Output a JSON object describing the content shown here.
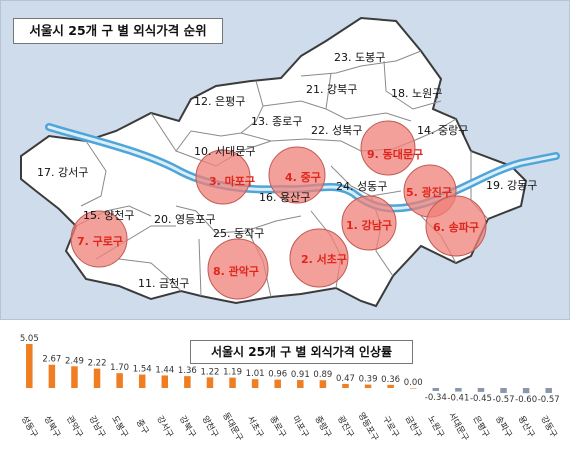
{
  "map": {
    "title": "서울시 25개 구 별 외식가격 순위",
    "colors": {
      "background": "#cfdcec",
      "district_fill": "#ffffff",
      "river": "#4fa5d8",
      "highlight": "#ef8078"
    },
    "districts": [
      {
        "id": "dobong",
        "label": "23. 도봉구",
        "highlight": false
      },
      {
        "id": "gangbuk",
        "label": "21. 강북구",
        "highlight": false
      },
      {
        "id": "nowon",
        "label": "18. 노원구",
        "highlight": false
      },
      {
        "id": "eunpyeong",
        "label": "12. 은평구",
        "highlight": false
      },
      {
        "id": "jongno",
        "label": "13. 종로구",
        "highlight": false
      },
      {
        "id": "seongbuk",
        "label": "22. 성북구",
        "highlight": false
      },
      {
        "id": "jungnang",
        "label": "14. 중랑구",
        "highlight": false
      },
      {
        "id": "dongdaemun",
        "label": "9. 동대문구",
        "highlight": true
      },
      {
        "id": "seodaemun",
        "label": "10. 서대문구",
        "highlight": false
      },
      {
        "id": "gangseo",
        "label": "17. 강서구",
        "highlight": false
      },
      {
        "id": "mapo",
        "label": "3. 마포구",
        "highlight": true
      },
      {
        "id": "jung",
        "label": "4. 중구",
        "highlight": true
      },
      {
        "id": "seongdong",
        "label": "24. 성동구",
        "highlight": false
      },
      {
        "id": "gwangjin",
        "label": "5. 광진구",
        "highlight": true
      },
      {
        "id": "gangdong",
        "label": "19. 강동구",
        "highlight": false
      },
      {
        "id": "yongsan",
        "label": "16. 용산구",
        "highlight": false
      },
      {
        "id": "yangcheon",
        "label": "15. 양천구",
        "highlight": false
      },
      {
        "id": "yeongdeungpo",
        "label": "20. 영등포구",
        "highlight": false
      },
      {
        "id": "gangnam",
        "label": "1. 강남구",
        "highlight": true
      },
      {
        "id": "songpa",
        "label": "6. 송파구",
        "highlight": true
      },
      {
        "id": "guro",
        "label": "7. 구로구",
        "highlight": true
      },
      {
        "id": "dongjak",
        "label": "25. 동작구",
        "highlight": false
      },
      {
        "id": "gwanak",
        "label": "8. 관악구",
        "highlight": true
      },
      {
        "id": "seocho",
        "label": "2. 서초구",
        "highlight": true
      },
      {
        "id": "geumcheon",
        "label": "11. 금천구",
        "highlight": false
      }
    ]
  },
  "chart_data": {
    "type": "bar",
    "title": "서울시 25개 구 별 외식가격 인상률",
    "categories": [
      "성동구",
      "성북구",
      "관악구",
      "강남구",
      "도봉구",
      "중구",
      "강서구",
      "강북구",
      "양천구",
      "동대문구",
      "서초구",
      "종로구",
      "마포구",
      "중랑구",
      "광진구",
      "영등포구",
      "구로구",
      "금천구",
      "노원구",
      "서대문구",
      "은평구",
      "송파구",
      "용산구",
      "강동구"
    ],
    "values": [
      5.05,
      2.67,
      2.49,
      2.22,
      1.7,
      1.54,
      1.44,
      1.36,
      1.22,
      1.19,
      1.01,
      0.96,
      0.91,
      0.89,
      0.47,
      0.39,
      0.36,
      0.0,
      -0.34,
      -0.41,
      -0.45,
      -0.57,
      -0.6,
      -0.57
    ],
    "value_labels": [
      "5.05",
      "2.67",
      "2.49",
      "2.22",
      "1.70",
      "1.54",
      "1.44",
      "1.36",
      "1.22",
      "1.19",
      "1.01",
      "0.96",
      "0.91",
      "0.89",
      "0.47",
      "0.39",
      "0.36",
      "0.00",
      "-0.34",
      "-0.41",
      "-0.45",
      "-0.57",
      "-0.60",
      "-0.57"
    ],
    "colors": {
      "positive": "#ef7d22",
      "negative": "#8899ad"
    },
    "ylim": [
      -0.6,
      5.2
    ],
    "grid": false,
    "legend": "none"
  }
}
